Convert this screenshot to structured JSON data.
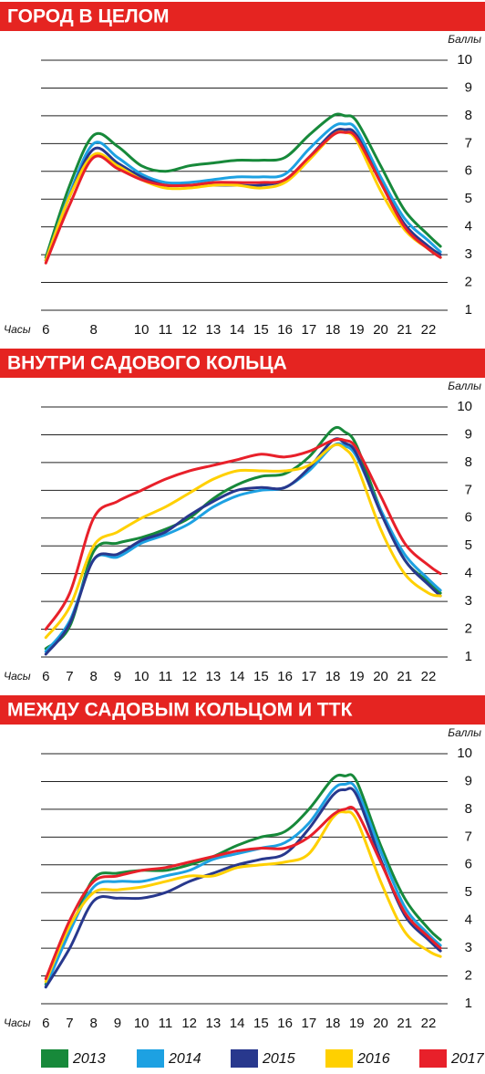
{
  "chart_data": [
    {
      "type": "line",
      "title": "ГОРОД В ЦЕЛОМ",
      "xlabel": "Часы",
      "ylabel": "Баллы",
      "x": [
        6,
        7,
        8,
        9,
        10,
        11,
        12,
        13,
        14,
        15,
        16,
        17,
        18,
        18.5,
        19,
        20,
        21,
        22,
        22.5
      ],
      "xlim": [
        5.8,
        22.8
      ],
      "xticks": [
        6,
        8,
        10,
        11,
        12,
        13,
        14,
        15,
        16,
        17,
        18,
        19,
        20,
        21,
        22
      ],
      "ylim": [
        1,
        10
      ],
      "yticks": [
        1,
        2,
        3,
        4,
        5,
        6,
        7,
        8,
        9,
        10
      ],
      "grid": true,
      "series": [
        {
          "color": "#17893a",
          "values": [
            2.9,
            5.5,
            7.3,
            6.9,
            6.2,
            6.0,
            6.2,
            6.3,
            6.4,
            6.4,
            6.5,
            7.3,
            8.0,
            8.0,
            7.8,
            6.2,
            4.6,
            3.7,
            3.3
          ]
        },
        {
          "color": "#1da1e2",
          "values": [
            2.8,
            5.2,
            7.0,
            6.5,
            5.9,
            5.6,
            5.6,
            5.7,
            5.8,
            5.8,
            5.9,
            6.8,
            7.6,
            7.7,
            7.5,
            5.8,
            4.3,
            3.5,
            3.1
          ]
        },
        {
          "color": "#28388d",
          "values": [
            2.8,
            5.1,
            6.8,
            6.3,
            5.8,
            5.5,
            5.5,
            5.5,
            5.5,
            5.5,
            5.7,
            6.5,
            7.4,
            7.5,
            7.3,
            5.6,
            4.1,
            3.3,
            3.0
          ]
        },
        {
          "color": "#ffd000",
          "values": [
            2.8,
            5.1,
            6.6,
            6.2,
            5.7,
            5.4,
            5.4,
            5.5,
            5.5,
            5.4,
            5.6,
            6.4,
            7.3,
            7.4,
            7.1,
            5.3,
            3.9,
            3.2,
            2.9
          ]
        },
        {
          "color": "#e8202a",
          "values": [
            2.7,
            4.8,
            6.5,
            6.1,
            5.7,
            5.5,
            5.5,
            5.6,
            5.6,
            5.6,
            5.7,
            6.5,
            7.3,
            7.4,
            7.2,
            5.6,
            4.0,
            3.2,
            2.9
          ]
        }
      ]
    },
    {
      "type": "line",
      "title": "ВНУТРИ САДОВОГО КОЛЬЦА",
      "xlabel": "Часы",
      "ylabel": "Баллы",
      "x": [
        6,
        7,
        8,
        9,
        10,
        11,
        12,
        13,
        14,
        15,
        16,
        17,
        18,
        18.5,
        19,
        20,
        21,
        22,
        22.5
      ],
      "xlim": [
        5.8,
        22.8
      ],
      "xticks": [
        6,
        7,
        8,
        9,
        10,
        11,
        12,
        13,
        14,
        15,
        16,
        17,
        18,
        19,
        20,
        21,
        22
      ],
      "ylim": [
        1,
        10
      ],
      "yticks": [
        1,
        2,
        3,
        4,
        5,
        6,
        7,
        8,
        9,
        10
      ],
      "grid": true,
      "series": [
        {
          "color": "#17893a",
          "values": [
            1.3,
            2.1,
            4.8,
            5.1,
            5.3,
            5.6,
            6.0,
            6.7,
            7.2,
            7.5,
            7.6,
            8.2,
            9.2,
            9.1,
            8.6,
            6.3,
            4.5,
            3.7,
            3.3
          ]
        },
        {
          "color": "#1da1e2",
          "values": [
            1.2,
            2.3,
            4.5,
            4.6,
            5.1,
            5.4,
            5.8,
            6.4,
            6.8,
            7.0,
            7.1,
            7.7,
            8.6,
            8.6,
            8.2,
            6.3,
            4.7,
            3.8,
            3.4
          ]
        },
        {
          "color": "#28388d",
          "values": [
            1.1,
            2.2,
            4.5,
            4.7,
            5.2,
            5.5,
            6.1,
            6.6,
            7.0,
            7.1,
            7.1,
            7.8,
            8.8,
            8.7,
            8.3,
            6.2,
            4.5,
            3.6,
            3.2
          ]
        },
        {
          "color": "#ffd000",
          "values": [
            1.7,
            2.8,
            5.0,
            5.5,
            6.0,
            6.4,
            6.9,
            7.4,
            7.7,
            7.7,
            7.7,
            7.9,
            8.6,
            8.5,
            7.9,
            5.6,
            4.0,
            3.3,
            3.2
          ]
        },
        {
          "color": "#e8202a",
          "values": [
            2.0,
            3.3,
            6.0,
            6.6,
            7.0,
            7.4,
            7.7,
            7.9,
            8.1,
            8.3,
            8.2,
            8.4,
            8.8,
            8.8,
            8.5,
            6.8,
            5.1,
            4.3,
            4.0
          ]
        }
      ]
    },
    {
      "type": "line",
      "title": "МЕЖДУ САДОВЫМ КОЛЬЦОМ И ТТК",
      "xlabel": "Часы",
      "ylabel": "Баллы",
      "x": [
        6,
        7,
        8,
        9,
        10,
        11,
        12,
        13,
        14,
        15,
        16,
        17,
        18,
        18.5,
        19,
        20,
        21,
        22,
        22.5
      ],
      "xlim": [
        5.8,
        22.8
      ],
      "xticks": [
        6,
        7,
        8,
        9,
        10,
        11,
        12,
        13,
        14,
        15,
        16,
        17,
        18,
        19,
        20,
        21,
        22
      ],
      "ylim": [
        1,
        10
      ],
      "yticks": [
        1,
        2,
        3,
        4,
        5,
        6,
        7,
        8,
        9,
        10
      ],
      "grid": true,
      "series": [
        {
          "name": "2013",
          "color": "#17893a",
          "values": [
            1.7,
            3.6,
            5.5,
            5.7,
            5.8,
            5.8,
            6.0,
            6.3,
            6.7,
            7.0,
            7.2,
            8.0,
            9.1,
            9.2,
            9.0,
            6.7,
            4.8,
            3.7,
            3.3
          ]
        },
        {
          "name": "2014",
          "color": "#1da1e2",
          "values": [
            1.6,
            3.6,
            5.2,
            5.4,
            5.4,
            5.6,
            5.8,
            6.2,
            6.4,
            6.6,
            6.8,
            7.5,
            8.7,
            8.9,
            8.7,
            6.5,
            4.5,
            3.5,
            3.1
          ]
        },
        {
          "name": "2015",
          "color": "#28388d",
          "values": [
            1.6,
            3.0,
            4.7,
            4.8,
            4.8,
            5.0,
            5.4,
            5.7,
            6.0,
            6.2,
            6.4,
            7.3,
            8.5,
            8.7,
            8.5,
            6.2,
            4.2,
            3.3,
            2.9
          ]
        },
        {
          "name": "2016",
          "color": "#ffd000",
          "values": [
            1.8,
            3.8,
            5.0,
            5.1,
            5.2,
            5.4,
            5.6,
            5.6,
            5.9,
            6.0,
            6.1,
            6.4,
            7.7,
            7.9,
            7.6,
            5.4,
            3.6,
            2.9,
            2.7
          ]
        },
        {
          "name": "2017",
          "color": "#e8202a",
          "values": [
            1.9,
            4.0,
            5.4,
            5.6,
            5.8,
            5.9,
            6.1,
            6.3,
            6.5,
            6.6,
            6.6,
            7.0,
            7.8,
            8.0,
            7.9,
            6.1,
            4.3,
            3.4,
            3.0
          ]
        }
      ]
    }
  ]
}
